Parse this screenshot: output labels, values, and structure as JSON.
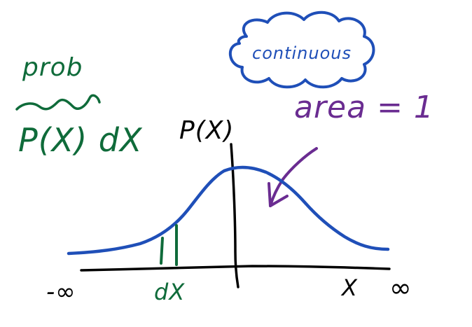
{
  "labels": {
    "prob": "prob",
    "prob_density": "P(X) dX",
    "y_axis": "P(X)",
    "continuous": "continuous",
    "area": "area = 1",
    "neg_inf": "-∞",
    "pos_inf": "∞",
    "dx": "dX",
    "x_axis": "X"
  },
  "colors": {
    "green": "#0f6b3a",
    "blue": "#1f4fb8",
    "purple": "#6a2c91",
    "black": "#000000"
  }
}
